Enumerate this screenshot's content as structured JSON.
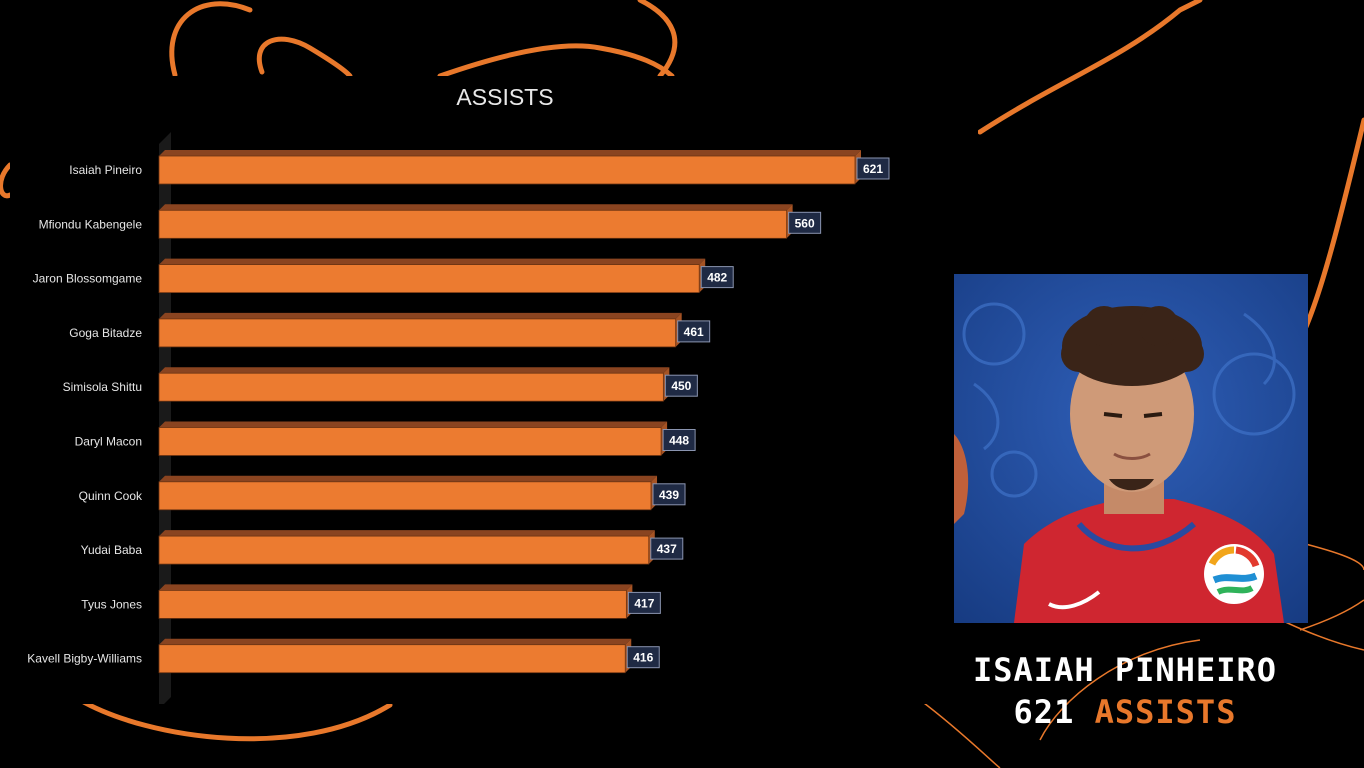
{
  "colors": {
    "background": "#000000",
    "bar_fill": "#ec7b30",
    "bar_top": "#8a4420",
    "bar_side": "#a55324",
    "label_box": "#1f2a44",
    "swirl": "#e8782b",
    "accent": "#e8782b"
  },
  "chart_data": {
    "type": "bar",
    "orientation": "horizontal",
    "style": "3d",
    "title": "ASSISTS",
    "categories": [
      "Isaiah Pineiro",
      "Mfiondu Kabengele",
      "Jaron Blossomgame",
      "Goga Bitadze",
      "Simisola Shittu",
      "Daryl Macon",
      "Quinn Cook",
      "Yudai Baba",
      "Tyus Jones",
      "Kavell Bigby-Williams"
    ],
    "values": [
      621,
      560,
      482,
      461,
      450,
      448,
      439,
      437,
      417,
      416
    ],
    "xlim": [
      0,
      621
    ],
    "data_labels": true,
    "grid": false,
    "legend": "none"
  },
  "highlight": {
    "photo_icon": "player-photo",
    "name": "ISAIAH PINHEIRO",
    "value": "621",
    "stat": "ASSISTS"
  }
}
